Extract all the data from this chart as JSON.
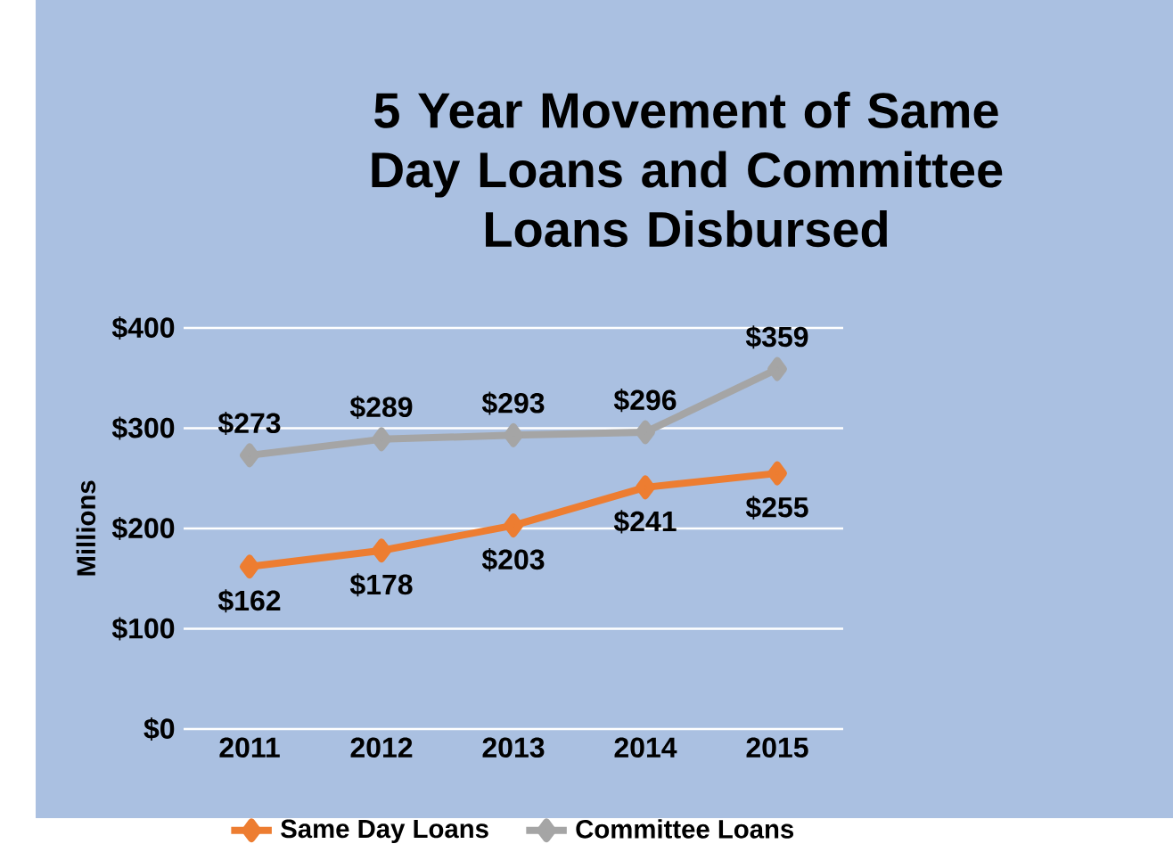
{
  "chart_data": {
    "type": "line",
    "title": "5 Year Movement of Same Day Loans and Committee Loans Disbursed",
    "ylabel": "Millions",
    "categories": [
      "2011",
      "2012",
      "2013",
      "2014",
      "2015"
    ],
    "series": [
      {
        "name": "Same Day Loans",
        "color": "#ed7d31",
        "values": [
          162,
          178,
          203,
          241,
          255
        ],
        "value_labels": [
          "$162",
          "$178",
          "$203",
          "$241",
          "$255"
        ]
      },
      {
        "name": "Committee Loans",
        "color": "#a5a5a5",
        "values": [
          273,
          289,
          293,
          296,
          359
        ],
        "value_labels": [
          "$273",
          "$289",
          "$293",
          "$296",
          "$359"
        ]
      }
    ],
    "ylim": [
      0,
      400
    ],
    "yticks": [
      {
        "value": 0,
        "label": "$0"
      },
      {
        "value": 100,
        "label": "$100"
      },
      {
        "value": 200,
        "label": "$200"
      },
      {
        "value": 300,
        "label": "$300"
      },
      {
        "value": 400,
        "label": "$400"
      }
    ],
    "grid": "y",
    "legend": "bottom",
    "marker": "diamond",
    "line_style": "solid"
  }
}
